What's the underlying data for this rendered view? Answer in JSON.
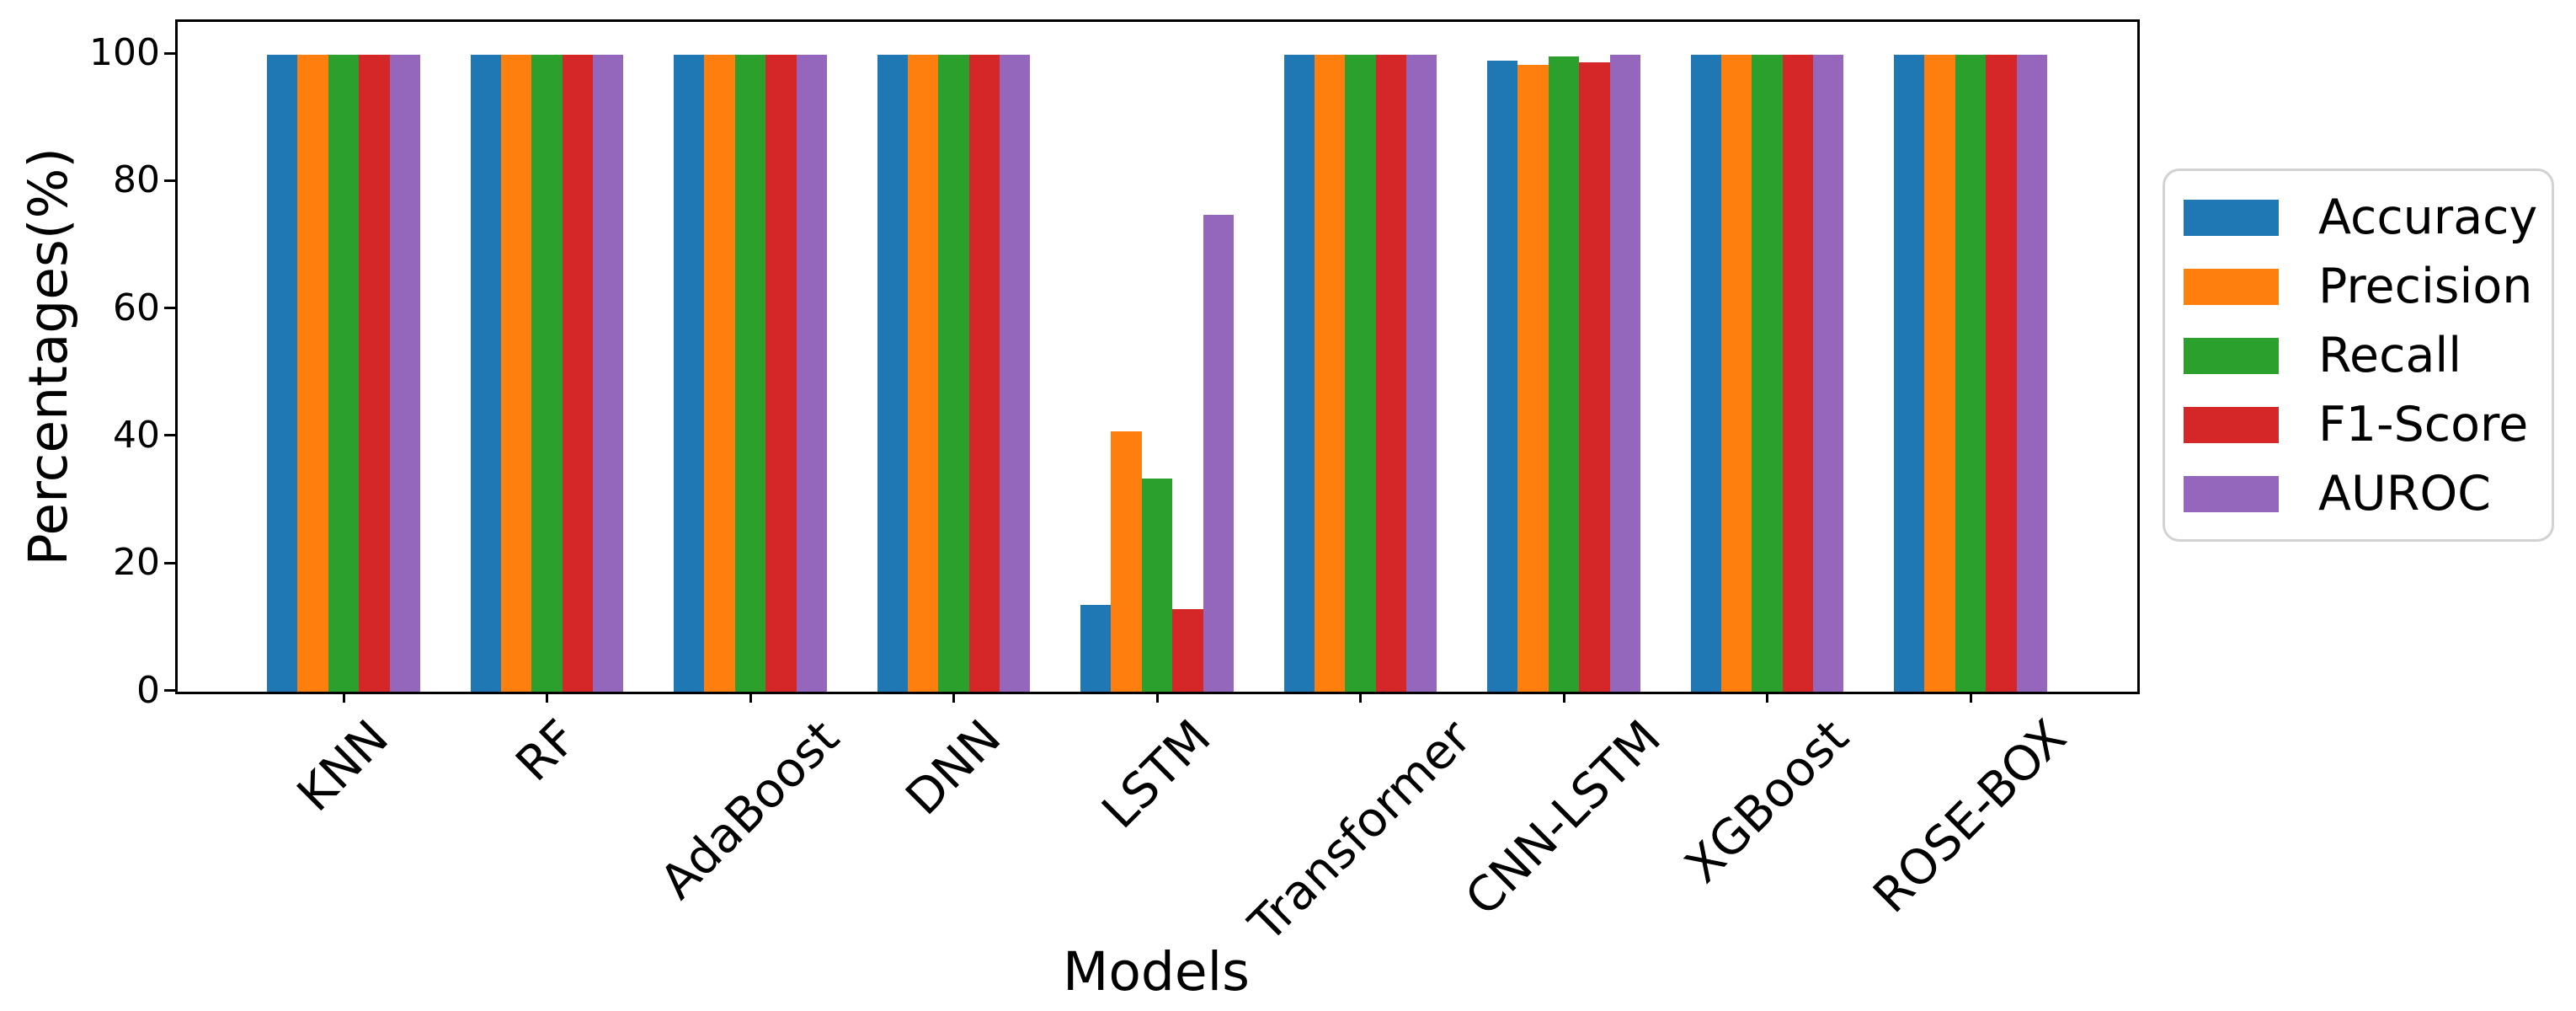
{
  "chart_data": {
    "type": "bar",
    "title": "",
    "xlabel": "Models",
    "ylabel": "Percentages(%)",
    "categories": [
      "KNN",
      "RF",
      "AdaBoost",
      "DNN",
      "LSTM",
      "Transformer",
      "CNN-LSTM",
      "XGBoost",
      "ROSE-BOX"
    ],
    "series": [
      {
        "name": "Accuracy",
        "color": "#1f77b4",
        "values": [
          100,
          100,
          100,
          100,
          13.6,
          100,
          99.0,
          100,
          100
        ]
      },
      {
        "name": "Precision",
        "color": "#ff7f0e",
        "values": [
          100,
          100,
          100,
          100,
          40.8,
          100,
          98.3,
          100,
          100
        ]
      },
      {
        "name": "Recall",
        "color": "#2ca02c",
        "values": [
          100,
          100,
          100,
          100,
          33.5,
          100,
          99.7,
          100,
          100
        ]
      },
      {
        "name": "F1-Score",
        "color": "#d62728",
        "values": [
          100,
          100,
          100,
          100,
          13.0,
          100,
          98.7,
          100,
          100
        ]
      },
      {
        "name": "AUROC",
        "color": "#9467bd",
        "values": [
          100,
          100,
          100,
          100,
          74.8,
          100,
          99.9,
          100,
          100
        ]
      }
    ],
    "yticks": [
      0,
      20,
      40,
      60,
      80,
      100
    ],
    "ylim": [
      0,
      105.1
    ],
    "grid": false,
    "legend_position": "right-outside",
    "axis_color": "#000000",
    "background_color": "#ffffff"
  }
}
